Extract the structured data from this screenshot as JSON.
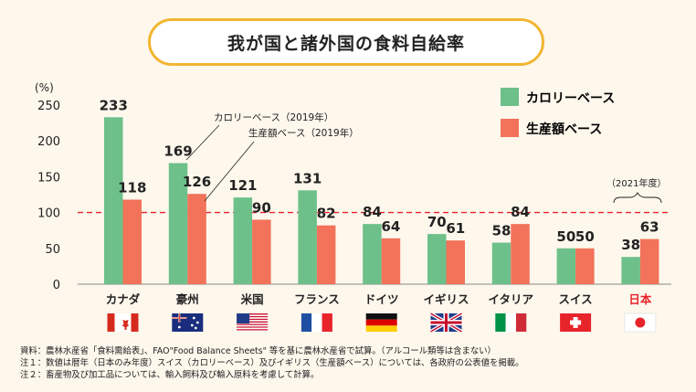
{
  "title": "我が国と諸外国の食料自給率",
  "chart_data": {
    "type": "bar",
    "ylabel": "(%)",
    "ylim": [
      0,
      250
    ],
    "yticks": [
      0,
      50,
      100,
      150,
      200,
      250
    ],
    "reference_line": 100,
    "categories": [
      "カナダ",
      "豪州",
      "米国",
      "フランス",
      "ドイツ",
      "イギリス",
      "イタリア",
      "スイス",
      "日本"
    ],
    "series": [
      {
        "name": "カロリーベース",
        "color": "#6dc08a",
        "values": [
          233,
          169,
          121,
          131,
          84,
          70,
          58,
          50,
          38
        ]
      },
      {
        "name": "生産額ベース",
        "color": "#f2725a",
        "values": [
          118,
          126,
          90,
          82,
          64,
          61,
          84,
          50,
          63
        ]
      }
    ],
    "highlight_category": "日本",
    "highlight_color": "#e8242b",
    "annotations": {
      "calorie_2019": "カロリーベース（2019年）",
      "production_2019": "生産額ベース（2019年）",
      "japan_year": "（2021年度）"
    }
  },
  "notes": [
    "資料：農林水産省「食料需給表」、FAO\"Food Balance Sheets\" 等を基に農林水産省で試算。（アルコール類等は含まない）",
    "注１：数値は暦年（日本のみ年度）スイス（カロリーベース）及びイギリス（生産額ベース）については、各政府の公表値を掲載。",
    "注２：畜産物及び加工品については、輸入飼料及び輸入原料を考慮して計算。"
  ]
}
